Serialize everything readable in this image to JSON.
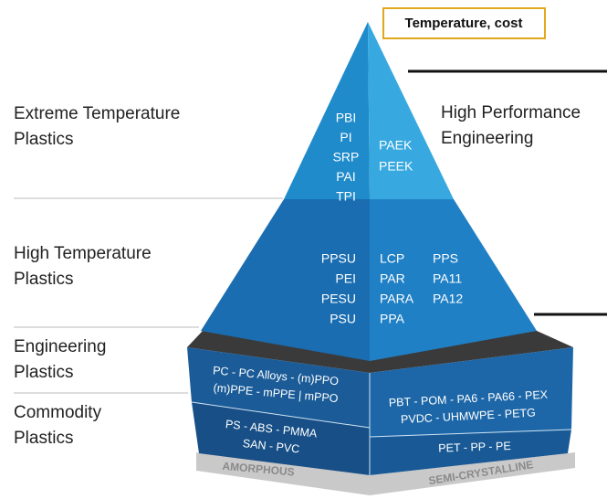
{
  "badge": "Temperature, cost",
  "left_labels": [
    [
      "Extreme Temperature",
      "Plastics"
    ],
    [
      "High Temperature",
      "Plastics"
    ],
    [
      "Engineering",
      "Plastics"
    ],
    [
      "Commodity",
      "Plastics"
    ]
  ],
  "right_label": [
    "High Performance",
    "Engineering"
  ],
  "tiers": {
    "extreme": {
      "left": [
        "PBI",
        "PI",
        "SRP",
        "PAI",
        "TPI"
      ],
      "right": [
        "PAEK",
        "PEEK"
      ]
    },
    "high": {
      "col1": [
        "PPSU",
        "PEI",
        "PESU",
        "PSU"
      ],
      "col2": [
        "LCP",
        "PAR",
        "PARA",
        "PPA"
      ],
      "col3": [
        "PPS",
        "PA11",
        "PA12"
      ]
    },
    "engineering": {
      "left": [
        "PC - PC Alloys - (m)PPO",
        "(m)PPE - mPPE | mPPO"
      ],
      "right": [
        "PBT - POM - PA6 - PA66 - PEX",
        "PVDC - UHMWPE - PETG"
      ]
    },
    "commodity": {
      "left": [
        "PS - ABS - PMMA",
        "SAN - PVC"
      ],
      "right": [
        "PET - PP - PE"
      ]
    }
  },
  "bottom_labels": [
    "AMORPHOUS",
    "SEMI-CRYSTALLINE"
  ]
}
